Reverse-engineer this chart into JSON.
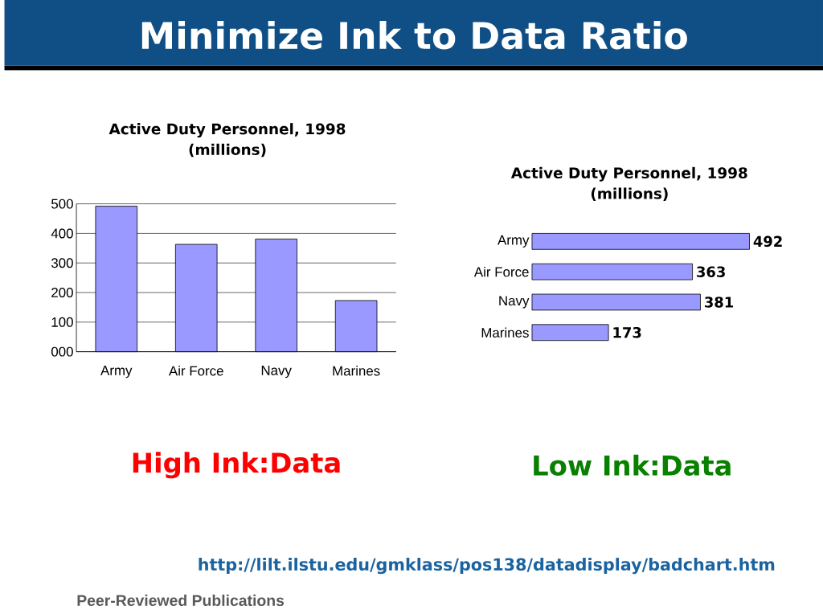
{
  "chart_data": [
    {
      "type": "other",
      "title": "Minimize Ink to Data Ratio"
    },
    {
      "type": "bar",
      "title": "Active Duty Personnel, 1998",
      "subtitle": "(millions)",
      "categories": [
        "Army",
        "Air Force",
        "Navy",
        "Marines"
      ],
      "values": [
        492,
        363,
        381,
        173
      ],
      "color": "#9999ff",
      "ylim": [
        0,
        500
      ],
      "yticks": [
        {
          "value": 0,
          "label": "000"
        },
        100,
        200,
        300,
        400,
        500
      ],
      "grid": "y",
      "annotations": [
        "High Ink:Data"
      ]
    },
    {
      "type": "bar",
      "orientation": "horizontal",
      "title": "Active Duty Personnel, 1998",
      "subtitle": "(millions)",
      "categories": [
        "Army",
        "Air Force",
        "Navy",
        "Marines"
      ],
      "values": [
        492,
        363,
        381,
        173
      ],
      "color": "#9999ff",
      "data_labels": true,
      "tick_labels": "y",
      "annotations": [
        "Low Ink:Data"
      ]
    },
    {
      "type": "other",
      "annotations": [
        "http://lilt.ilstu.edu/gmklass/pos138/datadisplay/badchart.htm",
        "Peer-Reviewed Publications"
      ]
    }
  ]
}
